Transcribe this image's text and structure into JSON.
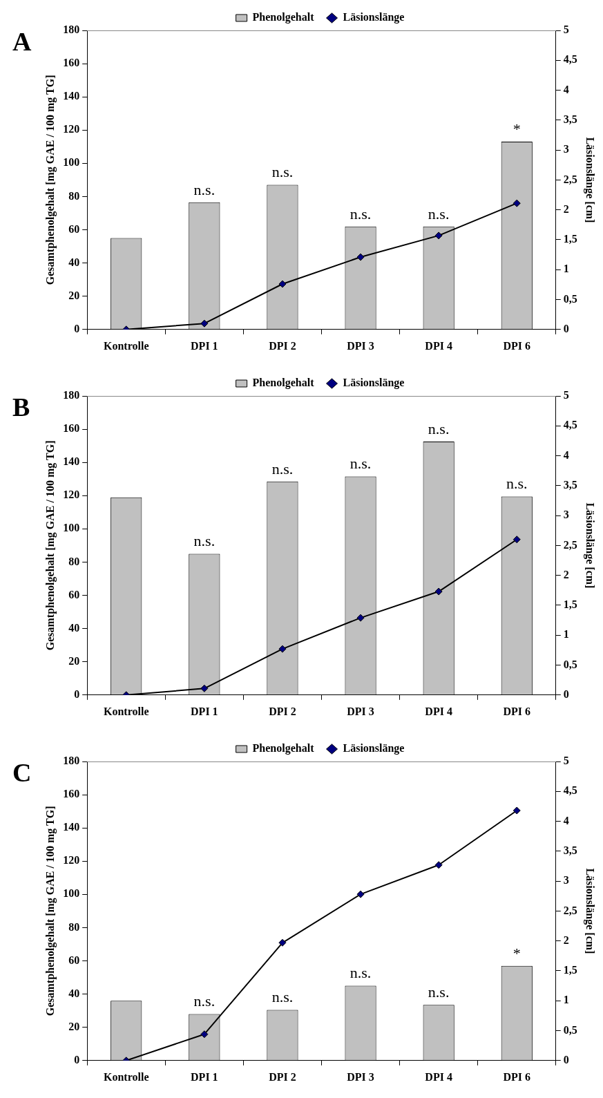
{
  "chart_data": [
    {
      "type": "bar",
      "title": "A",
      "ylabel": "Gesamtphenolgehalt [mg GAE / 100 mg TG]",
      "y2label": "Läsionslänge [cm]",
      "categories": [
        "Kontrolle",
        "DPI 1",
        "DPI 2",
        "DPI 3",
        "DPI 4",
        "DPI 6"
      ],
      "series": [
        {
          "name": "Phenolgehalt",
          "color": "#c0c0c0",
          "values": [
            55,
            76.5,
            87,
            62,
            62,
            113
          ]
        },
        {
          "name": "Läsionslänge",
          "type": "line",
          "axis": "y2",
          "color": "#000000",
          "marker": "diamond",
          "values": [
            0,
            0.1,
            0.76,
            1.21,
            1.57,
            2.11
          ]
        }
      ],
      "ylim": [
        0,
        180
      ],
      "yticks": [
        0,
        20,
        40,
        60,
        80,
        100,
        120,
        140,
        160,
        180
      ],
      "y2lim": [
        0,
        5
      ],
      "y2ticks": [
        0,
        {
          "value": 0.5,
          "label": "0,5"
        },
        1,
        {
          "value": 1.5,
          "label": "1,5"
        },
        2,
        {
          "value": 2.5,
          "label": "2,5"
        },
        3,
        {
          "value": 3.5,
          "label": "3,5"
        },
        4,
        {
          "value": 4.5,
          "label": "4,5"
        },
        5
      ],
      "legend": "top",
      "grid": false,
      "annotations": [
        {
          "text": "n.s.",
          "x": "DPI 1",
          "y": 76.5
        },
        {
          "text": "n.s.",
          "x": "DPI 2",
          "y": 87
        },
        {
          "text": "n.s.",
          "x": "DPI 3",
          "y": 62
        },
        {
          "text": "n.s.",
          "x": "DPI 4",
          "y": 62
        },
        {
          "text": "*",
          "x": "DPI 6",
          "y": 113
        }
      ]
    },
    {
      "type": "bar",
      "title": "B",
      "ylabel": "Gesamtphenolgehalt [mg GAE / 100 mg TG]",
      "y2label": "Läsionslänge [cm]",
      "categories": [
        "Kontrolle",
        "DPI 1",
        "DPI 2",
        "DPI 3",
        "DPI 4",
        "DPI 6"
      ],
      "series": [
        {
          "name": "Phenolgehalt",
          "color": "#c0c0c0",
          "values": [
            119,
            85,
            128.5,
            131.5,
            152.5,
            119.5
          ]
        },
        {
          "name": "Läsionslänge",
          "type": "line",
          "axis": "y2",
          "color": "#000000",
          "marker": "diamond",
          "values": [
            0,
            0.11,
            0.77,
            1.29,
            1.73,
            2.6
          ]
        }
      ],
      "ylim": [
        0,
        180
      ],
      "yticks": [
        0,
        20,
        40,
        60,
        80,
        100,
        120,
        140,
        160,
        180
      ],
      "y2lim": [
        0,
        5
      ],
      "y2ticks": [
        0,
        {
          "value": 0.5,
          "label": "0,5"
        },
        1,
        {
          "value": 1.5,
          "label": "1,5"
        },
        2,
        {
          "value": 2.5,
          "label": "2,5"
        },
        3,
        {
          "value": 3.5,
          "label": "3,5"
        },
        4,
        {
          "value": 4.5,
          "label": "4,5"
        },
        5
      ],
      "legend": "top",
      "grid": false,
      "annotations": [
        {
          "text": "n.s.",
          "x": "DPI 1",
          "y": 85
        },
        {
          "text": "n.s.",
          "x": "DPI 2",
          "y": 128.5
        },
        {
          "text": "n.s.",
          "x": "DPI 3",
          "y": 131.5
        },
        {
          "text": "n.s.",
          "x": "DPI 4",
          "y": 152.5
        },
        {
          "text": "n.s.",
          "x": "DPI 6",
          "y": 119.5
        }
      ]
    },
    {
      "type": "bar",
      "title": "C",
      "ylabel": "Gesamtphenolgehalt [mg GAE / 100 mg TG]",
      "y2label": "Läsionslänge [cm]",
      "categories": [
        "Kontrolle",
        "DPI 1",
        "DPI 2",
        "DPI 3",
        "DPI 4",
        "DPI 6"
      ],
      "series": [
        {
          "name": "Phenolgehalt",
          "color": "#c0c0c0",
          "values": [
            36,
            28,
            30.5,
            45,
            33.5,
            57
          ]
        },
        {
          "name": "Läsionslänge",
          "type": "line",
          "axis": "y2",
          "color": "#000000",
          "marker": "diamond",
          "values": [
            0,
            0.44,
            1.97,
            2.78,
            3.27,
            4.18
          ]
        }
      ],
      "ylim": [
        0,
        180
      ],
      "yticks": [
        0,
        20,
        40,
        60,
        80,
        100,
        120,
        140,
        160,
        180
      ],
      "y2lim": [
        0,
        5
      ],
      "y2ticks": [
        0,
        {
          "value": 0.5,
          "label": "0,5"
        },
        1,
        {
          "value": 1.5,
          "label": "1,5"
        },
        2,
        {
          "value": 2.5,
          "label": "2,5"
        },
        3,
        {
          "value": 3.5,
          "label": "3,5"
        },
        4,
        {
          "value": 4.5,
          "label": "4,5"
        },
        5
      ],
      "legend": "top",
      "grid": false,
      "annotations": [
        {
          "text": "n.s.",
          "x": "DPI 1",
          "y": 28
        },
        {
          "text": "n.s.",
          "x": "DPI 2",
          "y": 30.5
        },
        {
          "text": "n.s.",
          "x": "DPI 3",
          "y": 45
        },
        {
          "text": "n.s.",
          "x": "DPI 4",
          "y": 33.5
        },
        {
          "text": "*",
          "x": "DPI 6",
          "y": 57
        }
      ]
    }
  ]
}
